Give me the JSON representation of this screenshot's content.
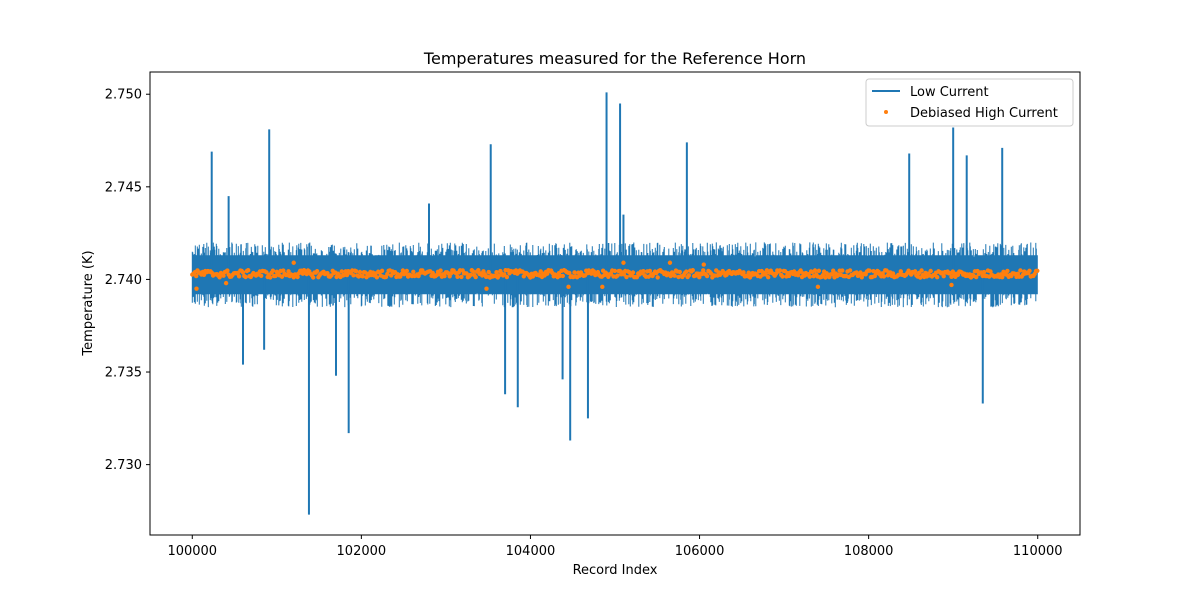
{
  "chart_data": {
    "type": "line",
    "title": "Temperatures measured for the Reference Horn",
    "xlabel": "Record Index",
    "ylabel": "Temperature (K)",
    "xlim": [
      99500,
      110500
    ],
    "ylim": [
      2.7262,
      2.7512
    ],
    "xticks": [
      100000,
      102000,
      104000,
      106000,
      108000,
      110000
    ],
    "xtick_labels": [
      "100000",
      "102000",
      "104000",
      "106000",
      "108000",
      "110000"
    ],
    "yticks": [
      2.73,
      2.735,
      2.74,
      2.745,
      2.75
    ],
    "ytick_labels": [
      "2.730",
      "2.735",
      "2.740",
      "2.745",
      "2.750"
    ],
    "grid": false,
    "legend_position": "top-right",
    "series": [
      {
        "name": "Low Current",
        "kind": "line",
        "color": "#1f77b4",
        "band": {
          "x_start": 100000,
          "x_end": 110000,
          "dense_low": 2.7392,
          "dense_high": 2.7413,
          "typical_low": 2.7385,
          "typical_high": 2.742
        },
        "spikes": [
          {
            "x": 100230,
            "y": 2.7469
          },
          {
            "x": 100430,
            "y": 2.7445
          },
          {
            "x": 100600,
            "y": 2.7354
          },
          {
            "x": 100850,
            "y": 2.7362
          },
          {
            "x": 100910,
            "y": 2.7481
          },
          {
            "x": 101380,
            "y": 2.7273
          },
          {
            "x": 101700,
            "y": 2.7348
          },
          {
            "x": 101850,
            "y": 2.7317
          },
          {
            "x": 102800,
            "y": 2.7441
          },
          {
            "x": 103530,
            "y": 2.7473
          },
          {
            "x": 103700,
            "y": 2.7338
          },
          {
            "x": 103850,
            "y": 2.7331
          },
          {
            "x": 104380,
            "y": 2.7346
          },
          {
            "x": 104470,
            "y": 2.7313
          },
          {
            "x": 104680,
            "y": 2.7325
          },
          {
            "x": 104900,
            "y": 2.7501
          },
          {
            "x": 105060,
            "y": 2.7495
          },
          {
            "x": 105100,
            "y": 2.7435
          },
          {
            "x": 105850,
            "y": 2.7474
          },
          {
            "x": 108480,
            "y": 2.7468
          },
          {
            "x": 109000,
            "y": 2.7482
          },
          {
            "x": 109160,
            "y": 2.7467
          },
          {
            "x": 109350,
            "y": 2.7333
          },
          {
            "x": 109580,
            "y": 2.7471
          }
        ]
      },
      {
        "name": "Debiased High Current",
        "kind": "scatter",
        "color": "#ff7f0e",
        "center": 2.7403,
        "typical_spread": 0.0002,
        "outliers": [
          {
            "x": 100050,
            "y": 2.7395
          },
          {
            "x": 100400,
            "y": 2.7398
          },
          {
            "x": 101200,
            "y": 2.7409
          },
          {
            "x": 103480,
            "y": 2.7395
          },
          {
            "x": 104450,
            "y": 2.7396
          },
          {
            "x": 104850,
            "y": 2.7396
          },
          {
            "x": 105100,
            "y": 2.7409
          },
          {
            "x": 105650,
            "y": 2.7409
          },
          {
            "x": 106050,
            "y": 2.7408
          },
          {
            "x": 107400,
            "y": 2.7396
          },
          {
            "x": 108980,
            "y": 2.7397
          }
        ]
      }
    ]
  }
}
